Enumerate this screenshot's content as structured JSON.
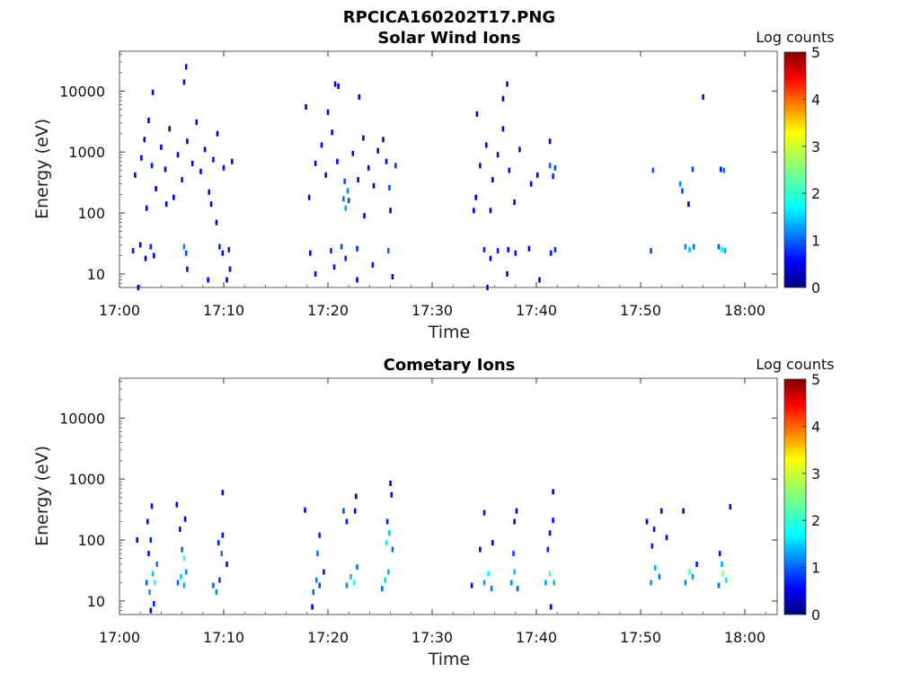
{
  "figure": {
    "title": "RPCICA160202T17.PNG"
  },
  "chart_data": [
    {
      "type": "heatmap",
      "title": "Solar Wind Ions",
      "xlabel": "Time",
      "ylabel": "Energy (eV)",
      "x_tick_labels": [
        "17:00",
        "17:10",
        "17:20",
        "17:30",
        "17:40",
        "17:50",
        "18:00"
      ],
      "y_tick_labels": [
        "10",
        "100",
        "1000",
        "10000"
      ],
      "y_scale": "log",
      "ylim": [
        6,
        45000
      ],
      "colorbar": {
        "label": "Log counts",
        "ticks": [
          "0",
          "1",
          "2",
          "3",
          "4",
          "5"
        ],
        "range": [
          0,
          5
        ],
        "colormap": "jet"
      },
      "events": [
        {
          "t": 1.3,
          "e": 24,
          "v": 0.7
        },
        {
          "t": 2.0,
          "e": 30,
          "v": 0.6
        },
        {
          "t": 2.5,
          "e": 18,
          "v": 0.5
        },
        {
          "t": 3.0,
          "e": 28,
          "v": 0.8
        },
        {
          "t": 3.3,
          "e": 20,
          "v": 0.6
        },
        {
          "t": 6.2,
          "e": 28,
          "v": 1.3
        },
        {
          "t": 6.4,
          "e": 22,
          "v": 1.0
        },
        {
          "t": 6.5,
          "e": 12,
          "v": 0.7
        },
        {
          "t": 9.6,
          "e": 28,
          "v": 0.8
        },
        {
          "t": 9.9,
          "e": 22,
          "v": 0.6
        },
        {
          "t": 10.5,
          "e": 25,
          "v": 0.7
        },
        {
          "t": 10.6,
          "e": 12,
          "v": 0.5
        },
        {
          "t": 8.5,
          "e": 8,
          "v": 0.6
        },
        {
          "t": 10.3,
          "e": 8,
          "v": 0.5
        },
        {
          "t": 1.8,
          "e": 6,
          "v": 0.5
        },
        {
          "t": 1.5,
          "e": 420,
          "v": 0.6
        },
        {
          "t": 2.1,
          "e": 800,
          "v": 0.6
        },
        {
          "t": 2.4,
          "e": 1600,
          "v": 0.5
        },
        {
          "t": 2.8,
          "e": 3300,
          "v": 0.5
        },
        {
          "t": 3.1,
          "e": 600,
          "v": 0.7
        },
        {
          "t": 3.5,
          "e": 250,
          "v": 0.6
        },
        {
          "t": 4.0,
          "e": 1200,
          "v": 0.6
        },
        {
          "t": 4.4,
          "e": 520,
          "v": 0.5
        },
        {
          "t": 4.8,
          "e": 2400,
          "v": 0.5
        },
        {
          "t": 5.2,
          "e": 180,
          "v": 0.6
        },
        {
          "t": 5.6,
          "e": 900,
          "v": 0.6
        },
        {
          "t": 6.0,
          "e": 350,
          "v": 0.7
        },
        {
          "t": 6.5,
          "e": 1500,
          "v": 0.6
        },
        {
          "t": 7.0,
          "e": 650,
          "v": 0.5
        },
        {
          "t": 7.4,
          "e": 3100,
          "v": 0.6
        },
        {
          "t": 7.8,
          "e": 480,
          "v": 0.6
        },
        {
          "t": 8.2,
          "e": 1100,
          "v": 0.5
        },
        {
          "t": 8.6,
          "e": 220,
          "v": 0.6
        },
        {
          "t": 9.0,
          "e": 750,
          "v": 0.7
        },
        {
          "t": 9.4,
          "e": 2000,
          "v": 0.5
        },
        {
          "t": 10.0,
          "e": 550,
          "v": 0.6
        },
        {
          "t": 10.8,
          "e": 700,
          "v": 0.6
        },
        {
          "t": 6.4,
          "e": 25000,
          "v": 0.5
        },
        {
          "t": 6.2,
          "e": 14000,
          "v": 0.5
        },
        {
          "t": 3.2,
          "e": 9500,
          "v": 0.5
        },
        {
          "t": 2.6,
          "e": 120,
          "v": 0.5
        },
        {
          "t": 4.5,
          "e": 140,
          "v": 0.5
        },
        {
          "t": 8.8,
          "e": 140,
          "v": 0.5
        },
        {
          "t": 9.3,
          "e": 70,
          "v": 0.5
        },
        {
          "t": 18.3,
          "e": 22,
          "v": 0.6
        },
        {
          "t": 18.8,
          "e": 10,
          "v": 0.5
        },
        {
          "t": 20.3,
          "e": 24,
          "v": 0.8
        },
        {
          "t": 20.6,
          "e": 13,
          "v": 0.7
        },
        {
          "t": 21.3,
          "e": 28,
          "v": 1.0
        },
        {
          "t": 21.7,
          "e": 18,
          "v": 0.8
        },
        {
          "t": 22.8,
          "e": 26,
          "v": 0.8
        },
        {
          "t": 24.3,
          "e": 14,
          "v": 0.7
        },
        {
          "t": 25.8,
          "e": 24,
          "v": 1.1
        },
        {
          "t": 26.2,
          "e": 9,
          "v": 0.6
        },
        {
          "t": 22.8,
          "e": 8,
          "v": 0.5
        },
        {
          "t": 21.5,
          "e": 170,
          "v": 1.2
        },
        {
          "t": 21.7,
          "e": 120,
          "v": 1.5
        },
        {
          "t": 21.9,
          "e": 230,
          "v": 1.3
        },
        {
          "t": 21.6,
          "e": 330,
          "v": 1.0
        },
        {
          "t": 22.0,
          "e": 160,
          "v": 1.0
        },
        {
          "t": 18.2,
          "e": 180,
          "v": 0.6
        },
        {
          "t": 18.8,
          "e": 650,
          "v": 0.6
        },
        {
          "t": 19.4,
          "e": 1300,
          "v": 0.5
        },
        {
          "t": 19.8,
          "e": 420,
          "v": 0.6
        },
        {
          "t": 20.4,
          "e": 2100,
          "v": 0.5
        },
        {
          "t": 20.9,
          "e": 700,
          "v": 0.6
        },
        {
          "t": 22.4,
          "e": 950,
          "v": 0.6
        },
        {
          "t": 22.9,
          "e": 350,
          "v": 0.6
        },
        {
          "t": 23.4,
          "e": 1700,
          "v": 0.5
        },
        {
          "t": 23.9,
          "e": 550,
          "v": 0.6
        },
        {
          "t": 24.4,
          "e": 280,
          "v": 0.5
        },
        {
          "t": 24.8,
          "e": 1050,
          "v": 0.5
        },
        {
          "t": 25.3,
          "e": 1600,
          "v": 0.6
        },
        {
          "t": 25.9,
          "e": 260,
          "v": 1.0
        },
        {
          "t": 26.5,
          "e": 600,
          "v": 0.9
        },
        {
          "t": 25.6,
          "e": 700,
          "v": 0.5
        },
        {
          "t": 17.9,
          "e": 5500,
          "v": 0.5
        },
        {
          "t": 20.7,
          "e": 13000,
          "v": 0.5
        },
        {
          "t": 21.0,
          "e": 12000,
          "v": 0.5
        },
        {
          "t": 23.0,
          "e": 8000,
          "v": 0.5
        },
        {
          "t": 20.0,
          "e": 4500,
          "v": 0.5
        },
        {
          "t": 23.5,
          "e": 90,
          "v": 0.5
        },
        {
          "t": 26.0,
          "e": 110,
          "v": 0.5
        },
        {
          "t": 35.0,
          "e": 25,
          "v": 0.8
        },
        {
          "t": 35.6,
          "e": 18,
          "v": 0.6
        },
        {
          "t": 36.3,
          "e": 24,
          "v": 0.8
        },
        {
          "t": 37.3,
          "e": 25,
          "v": 0.6
        },
        {
          "t": 38.0,
          "e": 22,
          "v": 0.7
        },
        {
          "t": 39.3,
          "e": 26,
          "v": 0.6
        },
        {
          "t": 41.8,
          "e": 25,
          "v": 0.9
        },
        {
          "t": 41.4,
          "e": 22,
          "v": 0.7
        },
        {
          "t": 35.3,
          "e": 6,
          "v": 0.5
        },
        {
          "t": 37.2,
          "e": 10,
          "v": 0.5
        },
        {
          "t": 40.3,
          "e": 8,
          "v": 0.5
        },
        {
          "t": 34.2,
          "e": 180,
          "v": 0.6
        },
        {
          "t": 34.6,
          "e": 600,
          "v": 0.6
        },
        {
          "t": 35.2,
          "e": 1300,
          "v": 0.5
        },
        {
          "t": 35.8,
          "e": 350,
          "v": 0.6
        },
        {
          "t": 36.3,
          "e": 900,
          "v": 0.5
        },
        {
          "t": 36.8,
          "e": 2400,
          "v": 0.5
        },
        {
          "t": 37.4,
          "e": 500,
          "v": 0.6
        },
        {
          "t": 37.9,
          "e": 150,
          "v": 0.5
        },
        {
          "t": 38.4,
          "e": 1100,
          "v": 0.5
        },
        {
          "t": 39.5,
          "e": 300,
          "v": 0.5
        },
        {
          "t": 40.1,
          "e": 420,
          "v": 0.6
        },
        {
          "t": 41.3,
          "e": 600,
          "v": 1.1
        },
        {
          "t": 41.8,
          "e": 550,
          "v": 1.0
        },
        {
          "t": 41.6,
          "e": 400,
          "v": 0.8
        },
        {
          "t": 41.3,
          "e": 1500,
          "v": 0.5
        },
        {
          "t": 37.2,
          "e": 13000,
          "v": 0.5
        },
        {
          "t": 36.8,
          "e": 7500,
          "v": 0.5
        },
        {
          "t": 34.3,
          "e": 4200,
          "v": 0.5
        },
        {
          "t": 35.6,
          "e": 110,
          "v": 0.5
        },
        {
          "t": 34.0,
          "e": 110,
          "v": 0.5
        },
        {
          "t": 51.0,
          "e": 24,
          "v": 1.0
        },
        {
          "t": 51.2,
          "e": 500,
          "v": 1.1
        },
        {
          "t": 53.8,
          "e": 300,
          "v": 1.3
        },
        {
          "t": 54.0,
          "e": 230,
          "v": 1.0
        },
        {
          "t": 54.3,
          "e": 28,
          "v": 1.3
        },
        {
          "t": 54.7,
          "e": 25,
          "v": 1.6
        },
        {
          "t": 55.1,
          "e": 28,
          "v": 1.2
        },
        {
          "t": 54.6,
          "e": 140,
          "v": 0.5
        },
        {
          "t": 55.0,
          "e": 520,
          "v": 1.0
        },
        {
          "t": 57.5,
          "e": 28,
          "v": 1.1
        },
        {
          "t": 57.8,
          "e": 25,
          "v": 1.8
        },
        {
          "t": 58.1,
          "e": 24,
          "v": 1.4
        },
        {
          "t": 58.0,
          "e": 500,
          "v": 1.2
        },
        {
          "t": 57.7,
          "e": 520,
          "v": 0.7
        },
        {
          "t": 56.0,
          "e": 8000,
          "v": 0.5
        }
      ]
    },
    {
      "type": "heatmap",
      "title": "Cometary Ions",
      "xlabel": "Time",
      "ylabel": "Energy (eV)",
      "x_tick_labels": [
        "17:00",
        "17:10",
        "17:20",
        "17:30",
        "17:40",
        "17:50",
        "18:00"
      ],
      "y_tick_labels": [
        "10",
        "100",
        "1000",
        "10000"
      ],
      "y_scale": "log",
      "ylim": [
        6,
        45000
      ],
      "colorbar": {
        "label": "Log counts",
        "ticks": [
          "0",
          "1",
          "2",
          "3",
          "4",
          "5"
        ],
        "range": [
          0,
          5
        ],
        "colormap": "jet"
      },
      "events": [
        {
          "t": 2.6,
          "e": 20,
          "v": 1.1
        },
        {
          "t": 2.9,
          "e": 14,
          "v": 1.4
        },
        {
          "t": 3.2,
          "e": 28,
          "v": 1.6
        },
        {
          "t": 3.4,
          "e": 20,
          "v": 2.0
        },
        {
          "t": 3.6,
          "e": 40,
          "v": 1.2
        },
        {
          "t": 3.3,
          "e": 9,
          "v": 0.8
        },
        {
          "t": 2.8,
          "e": 60,
          "v": 0.7
        },
        {
          "t": 3.0,
          "e": 100,
          "v": 0.8
        },
        {
          "t": 2.7,
          "e": 200,
          "v": 0.7
        },
        {
          "t": 3.1,
          "e": 360,
          "v": 0.6
        },
        {
          "t": 1.7,
          "e": 100,
          "v": 0.5
        },
        {
          "t": 3.0,
          "e": 7,
          "v": 0.6
        },
        {
          "t": 5.6,
          "e": 20,
          "v": 1.2
        },
        {
          "t": 5.9,
          "e": 25,
          "v": 1.7
        },
        {
          "t": 6.2,
          "e": 18,
          "v": 1.5
        },
        {
          "t": 6.4,
          "e": 30,
          "v": 1.3
        },
        {
          "t": 6.0,
          "e": 70,
          "v": 1.1
        },
        {
          "t": 6.2,
          "e": 50,
          "v": 2.1
        },
        {
          "t": 5.8,
          "e": 150,
          "v": 0.7
        },
        {
          "t": 6.3,
          "e": 220,
          "v": 0.6
        },
        {
          "t": 5.5,
          "e": 380,
          "v": 0.6
        },
        {
          "t": 9.0,
          "e": 18,
          "v": 1.1
        },
        {
          "t": 9.3,
          "e": 14,
          "v": 1.3
        },
        {
          "t": 9.6,
          "e": 22,
          "v": 0.9
        },
        {
          "t": 9.8,
          "e": 60,
          "v": 1.2
        },
        {
          "t": 9.5,
          "e": 90,
          "v": 0.8
        },
        {
          "t": 9.9,
          "e": 120,
          "v": 0.7
        },
        {
          "t": 10.3,
          "e": 40,
          "v": 0.6
        },
        {
          "t": 9.9,
          "e": 600,
          "v": 0.5
        },
        {
          "t": 18.6,
          "e": 14,
          "v": 1.1
        },
        {
          "t": 18.9,
          "e": 22,
          "v": 1.3
        },
        {
          "t": 19.2,
          "e": 18,
          "v": 1.0
        },
        {
          "t": 19.0,
          "e": 60,
          "v": 1.2
        },
        {
          "t": 19.2,
          "e": 120,
          "v": 0.8
        },
        {
          "t": 18.5,
          "e": 8,
          "v": 0.6
        },
        {
          "t": 17.8,
          "e": 310,
          "v": 0.5
        },
        {
          "t": 19.6,
          "e": 30,
          "v": 0.7
        },
        {
          "t": 21.8,
          "e": 18,
          "v": 1.3
        },
        {
          "t": 22.2,
          "e": 25,
          "v": 1.6
        },
        {
          "t": 22.5,
          "e": 20,
          "v": 1.9
        },
        {
          "t": 22.8,
          "e": 36,
          "v": 1.2
        },
        {
          "t": 21.5,
          "e": 300,
          "v": 1.0
        },
        {
          "t": 21.8,
          "e": 200,
          "v": 0.8
        },
        {
          "t": 22.6,
          "e": 300,
          "v": 0.6
        },
        {
          "t": 22.7,
          "e": 520,
          "v": 0.5
        },
        {
          "t": 25.2,
          "e": 16,
          "v": 1.2
        },
        {
          "t": 25.5,
          "e": 22,
          "v": 1.7
        },
        {
          "t": 25.8,
          "e": 30,
          "v": 1.5
        },
        {
          "t": 25.6,
          "e": 90,
          "v": 1.9
        },
        {
          "t": 25.9,
          "e": 130,
          "v": 1.6
        },
        {
          "t": 26.2,
          "e": 70,
          "v": 1.2
        },
        {
          "t": 25.7,
          "e": 200,
          "v": 0.8
        },
        {
          "t": 26.1,
          "e": 550,
          "v": 0.6
        },
        {
          "t": 26.0,
          "e": 850,
          "v": 0.5
        },
        {
          "t": 33.8,
          "e": 18,
          "v": 0.5
        },
        {
          "t": 35.0,
          "e": 20,
          "v": 1.4
        },
        {
          "t": 35.4,
          "e": 28,
          "v": 1.9
        },
        {
          "t": 35.7,
          "e": 16,
          "v": 1.2
        },
        {
          "t": 34.6,
          "e": 70,
          "v": 0.6
        },
        {
          "t": 35.0,
          "e": 280,
          "v": 0.5
        },
        {
          "t": 35.8,
          "e": 90,
          "v": 0.5
        },
        {
          "t": 37.6,
          "e": 20,
          "v": 1.3
        },
        {
          "t": 37.9,
          "e": 30,
          "v": 1.6
        },
        {
          "t": 38.2,
          "e": 16,
          "v": 1.1
        },
        {
          "t": 37.8,
          "e": 60,
          "v": 1.0
        },
        {
          "t": 37.9,
          "e": 200,
          "v": 0.6
        },
        {
          "t": 38.1,
          "e": 300,
          "v": 0.5
        },
        {
          "t": 40.9,
          "e": 20,
          "v": 1.4
        },
        {
          "t": 41.3,
          "e": 28,
          "v": 2.3
        },
        {
          "t": 41.7,
          "e": 20,
          "v": 1.5
        },
        {
          "t": 41.1,
          "e": 70,
          "v": 0.8
        },
        {
          "t": 41.3,
          "e": 130,
          "v": 0.7
        },
        {
          "t": 41.6,
          "e": 210,
          "v": 0.6
        },
        {
          "t": 41.4,
          "e": 8,
          "v": 0.6
        },
        {
          "t": 41.6,
          "e": 620,
          "v": 0.5
        },
        {
          "t": 51.0,
          "e": 20,
          "v": 1.4
        },
        {
          "t": 51.4,
          "e": 35,
          "v": 1.5
        },
        {
          "t": 51.8,
          "e": 25,
          "v": 1.2
        },
        {
          "t": 51.1,
          "e": 80,
          "v": 0.8
        },
        {
          "t": 51.3,
          "e": 150,
          "v": 0.7
        },
        {
          "t": 50.6,
          "e": 200,
          "v": 0.6
        },
        {
          "t": 52.0,
          "e": 300,
          "v": 0.5
        },
        {
          "t": 52.5,
          "e": 110,
          "v": 0.6
        },
        {
          "t": 54.3,
          "e": 20,
          "v": 1.3
        },
        {
          "t": 54.7,
          "e": 30,
          "v": 2.2
        },
        {
          "t": 55.0,
          "e": 25,
          "v": 1.4
        },
        {
          "t": 54.1,
          "e": 300,
          "v": 0.6
        },
        {
          "t": 55.4,
          "e": 40,
          "v": 0.7
        },
        {
          "t": 57.5,
          "e": 18,
          "v": 1.2
        },
        {
          "t": 57.9,
          "e": 28,
          "v": 2.6
        },
        {
          "t": 58.2,
          "e": 22,
          "v": 1.8
        },
        {
          "t": 57.8,
          "e": 40,
          "v": 1.5
        },
        {
          "t": 58.6,
          "e": 350,
          "v": 0.5
        },
        {
          "t": 57.6,
          "e": 60,
          "v": 0.7
        }
      ]
    }
  ]
}
